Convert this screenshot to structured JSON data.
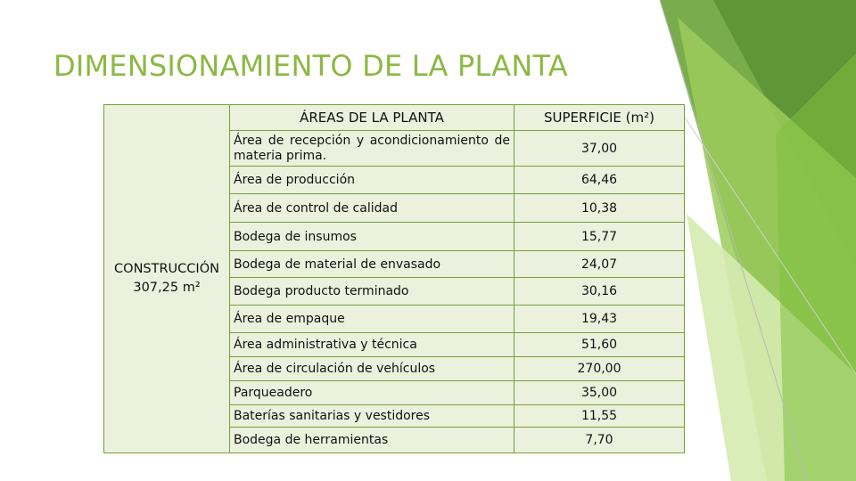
{
  "title": "DIMENSIONAMIENTO DE LA PLANTA",
  "colors": {
    "title": "#8cb844",
    "table_border": "#77a03a",
    "table_fill": "#ebf1dd",
    "deco_dark": "#6aa33a",
    "deco_light": "#c8e39a"
  },
  "table": {
    "headers": {
      "area": "ÁREAS DE LA PLANTA",
      "superficie": "SUPERFICIE (m²)"
    },
    "group": {
      "label": "CONSTRUCCIÓN",
      "value": "307,25 m²"
    },
    "rows": [
      {
        "area": "Área de recepción y acondicionamiento de materia prima.",
        "value": "37,00"
      },
      {
        "area": "Área de producción",
        "value": "64,46"
      },
      {
        "area": "Área de control de calidad",
        "value": "10,38"
      },
      {
        "area": "Bodega de insumos",
        "value": "15,77"
      },
      {
        "area": "Bodega de material de envasado",
        "value": "24,07"
      },
      {
        "area": "Bodega producto terminado",
        "value": "30,16"
      },
      {
        "area": "Área de empaque",
        "value": "19,43"
      },
      {
        "area": "Área administrativa y técnica",
        "value": "51,60"
      },
      {
        "area": "Área de circulación de vehículos",
        "value": "270,00"
      },
      {
        "area": "Parqueadero",
        "value": "35,00"
      },
      {
        "area": "Baterías sanitarias y vestidores",
        "value": "11,55"
      },
      {
        "area": "Bodega de herramientas",
        "value": "7,70"
      }
    ]
  }
}
